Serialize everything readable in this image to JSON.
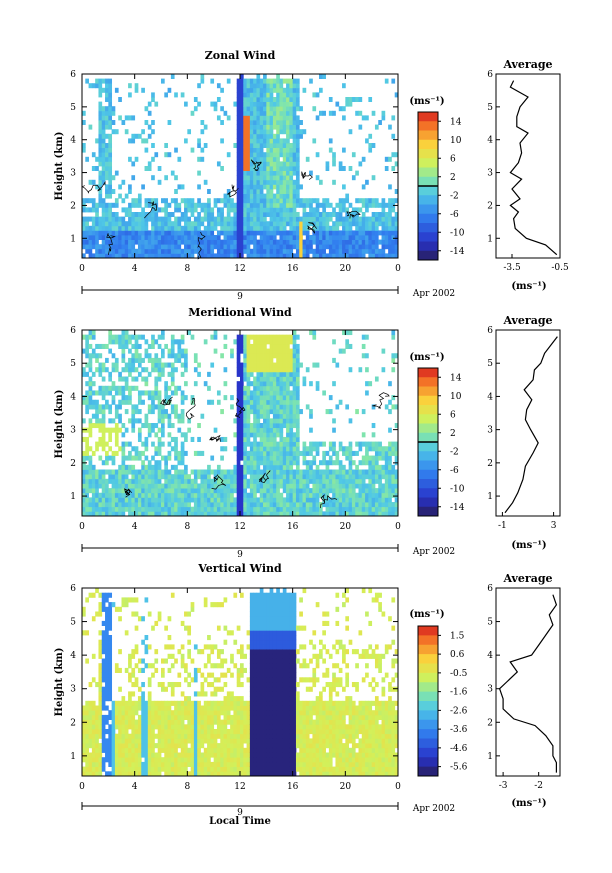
{
  "figure": {
    "xlabel": "Local Time",
    "day_label": "9",
    "date_label": "Apr 2002",
    "x_ticks": [
      "0",
      "4",
      "8",
      "12",
      "16",
      "20",
      "0"
    ],
    "y_ticks": [
      "1",
      "2",
      "3",
      "4",
      "5",
      "6"
    ],
    "colorbar_unit": "(ms⁻¹)",
    "avg_unit": "(ms⁻¹)"
  },
  "chart_data": [
    {
      "type": "heatmap",
      "title": "Zonal Wind",
      "xlabel": "",
      "ylabel": "Height (km)",
      "xlim": [
        0,
        24
      ],
      "ylim": [
        0.4,
        6.0
      ],
      "colorbar": {
        "ticks": [
          "14",
          "10",
          "6",
          "2",
          "-2",
          "-6",
          "-10",
          "-14"
        ],
        "min": -16,
        "max": 16,
        "contour": 0
      },
      "average_profile": {
        "title": "Average",
        "xticks": [
          "-3.5",
          "-0.5"
        ],
        "xlim": [
          -4.5,
          -0.5
        ],
        "height": [
          0.5,
          0.8,
          1.0,
          1.3,
          1.6,
          1.8,
          2.0,
          2.2,
          2.5,
          2.8,
          3.0,
          3.3,
          3.6,
          3.9,
          4.2,
          4.4,
          4.7,
          5.0,
          5.3,
          5.6,
          5.8
        ],
        "value": [
          -0.7,
          -1.4,
          -2.6,
          -3.3,
          -3.4,
          -3.1,
          -3.6,
          -3.0,
          -3.5,
          -2.9,
          -3.6,
          -3.1,
          -2.9,
          -3.0,
          -2.5,
          -3.2,
          -3.2,
          -3.0,
          -2.5,
          -3.6,
          -3.4
        ]
      }
    },
    {
      "type": "heatmap",
      "title": "Meridional Wind",
      "xlabel": "",
      "ylabel": "Height (km)",
      "xlim": [
        0,
        24
      ],
      "ylim": [
        0.4,
        6.0
      ],
      "colorbar": {
        "ticks": [
          "14",
          "10",
          "6",
          "2",
          "-2",
          "-6",
          "-10",
          "-14"
        ],
        "min": -16,
        "max": 16,
        "contour": 0
      },
      "average_profile": {
        "title": "Average",
        "xticks": [
          "-1",
          "3"
        ],
        "xlim": [
          -1.5,
          3.5
        ],
        "height": [
          0.5,
          0.8,
          1.1,
          1.5,
          1.9,
          2.3,
          2.6,
          3.0,
          3.3,
          3.6,
          3.9,
          4.2,
          4.5,
          4.8,
          5.0,
          5.3,
          5.6,
          5.8
        ],
        "value": [
          -0.8,
          -0.2,
          0.2,
          0.6,
          0.8,
          1.4,
          1.8,
          1.2,
          0.8,
          0.9,
          1.3,
          0.7,
          1.4,
          1.5,
          2.0,
          2.3,
          2.9,
          3.3
        ]
      }
    },
    {
      "type": "heatmap",
      "title": "Vertical Wind",
      "xlabel": "Local Time",
      "ylabel": "Height (km)",
      "xlim": [
        0,
        24
      ],
      "ylim": [
        0.4,
        6.0
      ],
      "colorbar": {
        "ticks": [
          "1.5",
          "0.6",
          "-0.5",
          "-1.6",
          "-2.6",
          "-3.6",
          "-4.6",
          "-5.6"
        ],
        "min": -6.0,
        "max": 2.0
      },
      "average_profile": {
        "title": "Average",
        "xticks": [
          "-3",
          "-2"
        ],
        "xlim": [
          -3.2,
          -1.4
        ],
        "height": [
          0.5,
          0.8,
          1.0,
          1.3,
          1.6,
          1.9,
          2.1,
          2.4,
          2.7,
          3.0,
          3.2,
          3.5,
          3.8,
          4.0,
          4.3,
          4.6,
          4.9,
          5.2,
          5.5,
          5.8
        ],
        "value": [
          -1.5,
          -1.5,
          -1.6,
          -1.6,
          -1.8,
          -2.1,
          -2.7,
          -3.0,
          -3.0,
          -3.1,
          -2.9,
          -2.6,
          -2.8,
          -2.2,
          -2.0,
          -1.8,
          -1.6,
          -1.7,
          -1.5,
          -1.6
        ]
      }
    }
  ]
}
